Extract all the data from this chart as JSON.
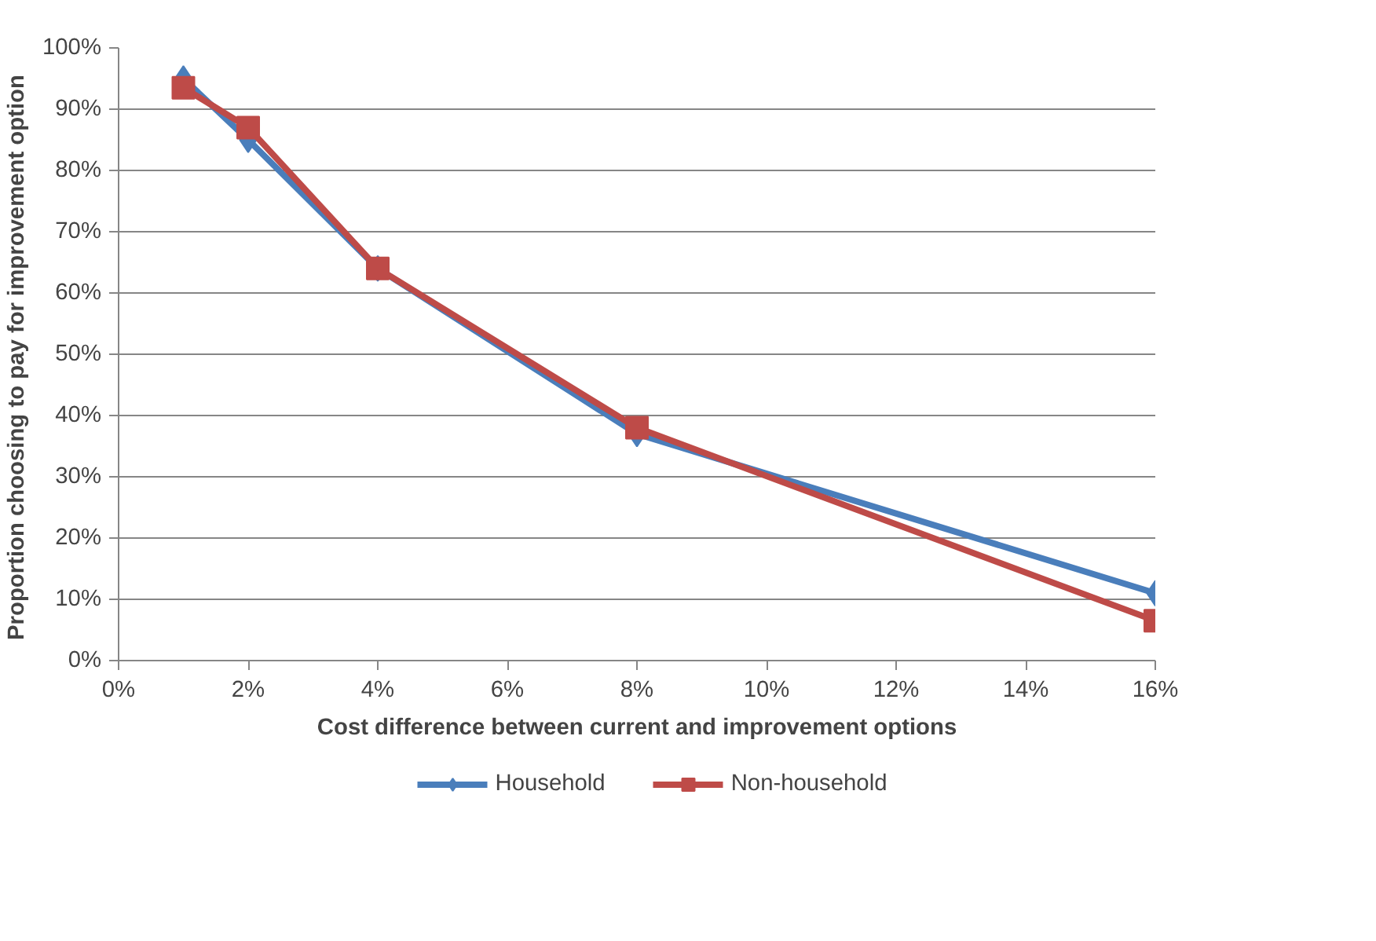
{
  "chart_data": {
    "type": "line",
    "xlabel": "Cost difference between current and improvement options",
    "ylabel": "Proportion choosing to pay  for improvement option",
    "x": [
      1,
      2,
      4,
      8,
      16
    ],
    "series": [
      {
        "name": "Household",
        "color": "#4a7ebb",
        "marker": "diamond",
        "values": [
          95,
          85,
          64,
          37,
          11
        ]
      },
      {
        "name": "Non-household",
        "color": "#be4b48",
        "marker": "square",
        "values": [
          93.5,
          87,
          64,
          38,
          6.5
        ]
      }
    ],
    "xlim": [
      0,
      16
    ],
    "xticks": [
      {
        "value": 0,
        "label": "0%"
      },
      {
        "value": 2,
        "label": "2%"
      },
      {
        "value": 4,
        "label": "4%"
      },
      {
        "value": 6,
        "label": "6%"
      },
      {
        "value": 8,
        "label": "8%"
      },
      {
        "value": 10,
        "label": "10%"
      },
      {
        "value": 12,
        "label": "12%"
      },
      {
        "value": 14,
        "label": "14%"
      },
      {
        "value": 16,
        "label": "16%"
      }
    ],
    "ylim": [
      0,
      100
    ],
    "yticks": [
      {
        "value": 0,
        "label": "0%"
      },
      {
        "value": 10,
        "label": "10%"
      },
      {
        "value": 20,
        "label": "20%"
      },
      {
        "value": 30,
        "label": "30%"
      },
      {
        "value": 40,
        "label": "40%"
      },
      {
        "value": 50,
        "label": "50%"
      },
      {
        "value": 60,
        "label": "60%"
      },
      {
        "value": 70,
        "label": "70%"
      },
      {
        "value": 80,
        "label": "80%"
      },
      {
        "value": 90,
        "label": "90%"
      },
      {
        "value": 100,
        "label": "100%"
      }
    ],
    "grid": "y",
    "legend": "bottom",
    "line_style": "solid"
  }
}
